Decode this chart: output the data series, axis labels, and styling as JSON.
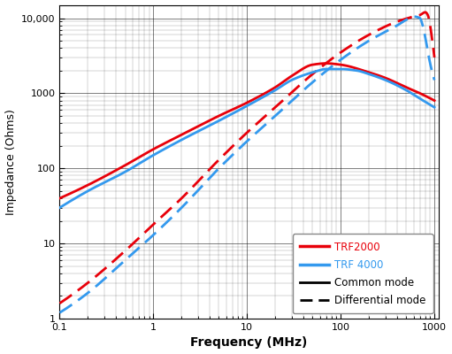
{
  "xlabel": "Frequency (MHz)",
  "ylabel": "Impedance (Ohms)",
  "background_color": "#ffffff",
  "grid_major_color": "#000000",
  "grid_minor_color": "#000000",
  "trf2000_color": "#e8000a",
  "trf4000_color": "#3399ee",
  "legend_trf2000": "TRF2000",
  "legend_trf4000": "TRF 4000",
  "legend_common": "Common mode",
  "legend_diff": "Differential mode",
  "trf2000_cm": {
    "x": [
      0.1,
      0.2,
      0.5,
      1,
      2,
      5,
      10,
      20,
      30,
      50,
      70,
      100,
      200,
      300,
      500,
      700,
      1000
    ],
    "y": [
      40,
      60,
      110,
      180,
      280,
      500,
      750,
      1200,
      1700,
      2400,
      2500,
      2400,
      1900,
      1600,
      1200,
      1000,
      800
    ]
  },
  "trf4000_cm": {
    "x": [
      0.1,
      0.2,
      0.5,
      1,
      2,
      5,
      10,
      20,
      30,
      50,
      70,
      100,
      150,
      200,
      300,
      500,
      700,
      1000
    ],
    "y": [
      30,
      50,
      90,
      150,
      240,
      430,
      680,
      1100,
      1500,
      1900,
      2100,
      2100,
      2000,
      1800,
      1500,
      1100,
      850,
      650
    ]
  },
  "trf2000_diff": {
    "x": [
      0.1,
      0.2,
      0.5,
      1,
      2,
      5,
      10,
      20,
      50,
      100,
      200,
      400,
      600,
      700,
      800,
      850,
      900,
      950,
      1000
    ],
    "y": [
      1.6,
      3.0,
      8,
      18,
      40,
      130,
      300,
      650,
      1800,
      3500,
      6000,
      9000,
      10500,
      11000,
      12000,
      11000,
      8000,
      5000,
      3000
    ]
  },
  "trf4000_diff": {
    "x": [
      0.1,
      0.2,
      0.5,
      1,
      2,
      5,
      10,
      20,
      50,
      100,
      200,
      400,
      500,
      600,
      700,
      750,
      800,
      900,
      1000
    ],
    "y": [
      1.2,
      2.2,
      6,
      13,
      30,
      100,
      230,
      500,
      1400,
      2800,
      5000,
      8000,
      9500,
      10500,
      10000,
      8000,
      5500,
      2500,
      1500
    ]
  }
}
